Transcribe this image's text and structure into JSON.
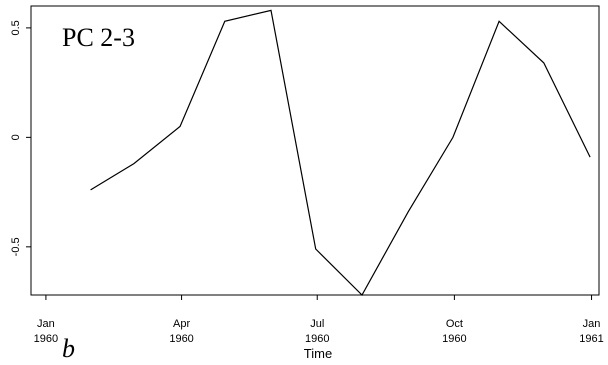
{
  "chart_data": {
    "type": "line",
    "title": "PC 2-3",
    "panel_label": "b",
    "xlabel": "Time",
    "ylabel": "",
    "grid": false,
    "legend": "none",
    "line_color": "#000000",
    "x": [
      "1960-01-31",
      "1960-02-29",
      "1960-03-31",
      "1960-04-30",
      "1960-05-31",
      "1960-06-30",
      "1960-07-31",
      "1960-08-31",
      "1960-09-30",
      "1960-10-31",
      "1960-11-30",
      "1960-12-31"
    ],
    "values": [
      -0.24,
      -0.12,
      0.05,
      0.53,
      0.58,
      -0.51,
      -0.72,
      -0.34,
      0.0,
      0.53,
      0.34,
      -0.09
    ],
    "xlim": [
      "1959-12-22",
      "1961-01-06"
    ],
    "ylim": [
      -0.72,
      0.6
    ],
    "x_ticks": [
      {
        "date": "1960-01-01",
        "line1": "Jan",
        "line2": "1960"
      },
      {
        "date": "1960-04-01",
        "line1": "Apr",
        "line2": "1960"
      },
      {
        "date": "1960-07-01",
        "line1": "Jul",
        "line2": "1960"
      },
      {
        "date": "1960-10-01",
        "line1": "Oct",
        "line2": "1960"
      },
      {
        "date": "1961-01-01",
        "line1": "Jan",
        "line2": "1961"
      }
    ],
    "y_ticks": [
      {
        "value": 0.5,
        "label": "0.5"
      },
      {
        "value": 0,
        "label": "0"
      },
      {
        "value": -0.5,
        "label": "-0.5"
      }
    ]
  }
}
